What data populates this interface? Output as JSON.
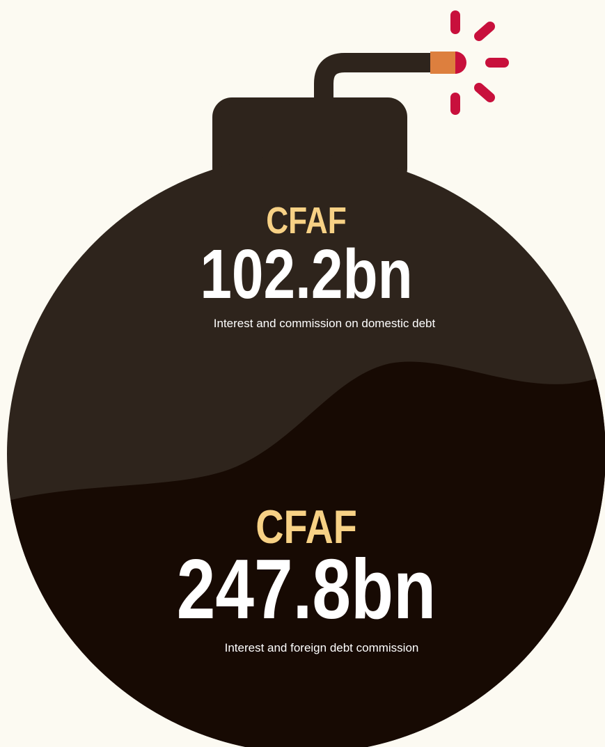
{
  "top": {
    "currency": "CFAF",
    "amount": "102.2bn",
    "caption": "Interest and commission on domestic debt"
  },
  "bottom": {
    "currency": "CFAF",
    "amount": "247.8bn",
    "caption": "Interest and foreign debt commission"
  }
}
